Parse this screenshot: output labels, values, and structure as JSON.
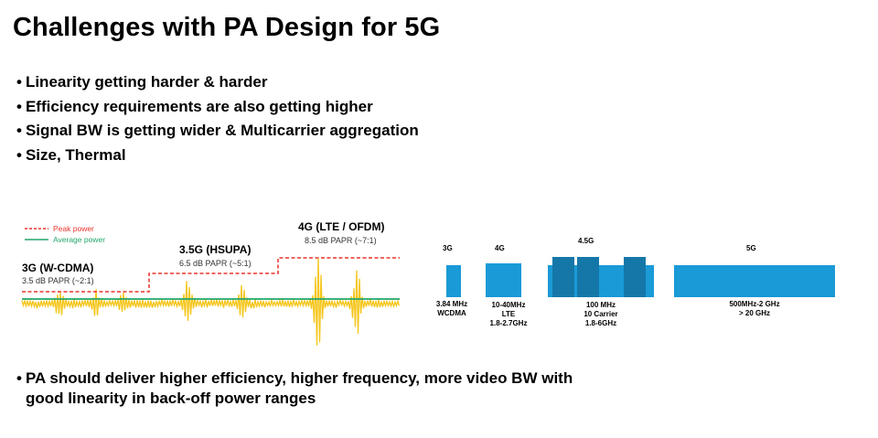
{
  "slide": {
    "title": "Challenges with PA Design for 5G",
    "bullets": [
      "Linearity getting harder & harder",
      "Efficiency requirements are also getting higher",
      "Signal BW is getting wider & Multicarrier aggregation",
      "Size, Thermal"
    ],
    "bottom_bullet": "PA should deliver higher efficiency, higher frequency, more video BW with\ngood linearity in back-off power ranges",
    "bullet_glyph": "•"
  },
  "papr_figure": {
    "legend": {
      "peak": "Peak power",
      "average": "Average power"
    },
    "generations": [
      {
        "name": "3G (W-CDMA)",
        "papr": "3.5 dB PAPR (~2:1)"
      },
      {
        "name": "3.5G (HSUPA)",
        "papr": "6.5 dB PAPR (~5:1)"
      },
      {
        "name": "4G (LTE / OFDM)",
        "papr": "8.5 dB PAPR (~7:1)"
      }
    ],
    "colors": {
      "peak": "#e8342c",
      "average": "#22a66a",
      "signal": "#f5c518"
    }
  },
  "bandwidth_figure": {
    "color_light": "#1a9ad6",
    "color_dark": "#1577a8",
    "bands": [
      {
        "gen": "3G",
        "lines": [
          "3.84 MHz",
          "WCDMA"
        ]
      },
      {
        "gen": "4G",
        "lines": [
          "10-40MHz",
          "LTE",
          "1.8-2.7GHz"
        ]
      },
      {
        "gen": "4.5G",
        "lines": [
          "100 MHz",
          "10 Carrier",
          "1.8-6GHz"
        ]
      },
      {
        "gen": "5G",
        "lines": [
          "500MHz-2 GHz",
          "> 20 GHz"
        ]
      }
    ]
  }
}
